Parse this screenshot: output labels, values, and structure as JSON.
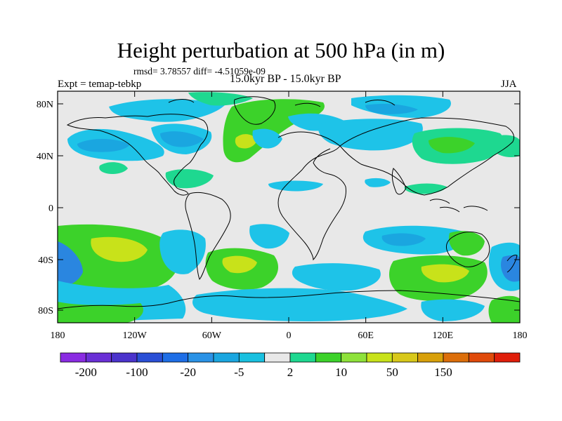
{
  "title": "Height perturbation at 500 hPa (in m)",
  "stats_line": "rmsd= 3.78557 diff= -4.51059e-09",
  "experiment": "Expt = temap-tebkp",
  "period": "15.0kyr BP - 15.0kyr BP",
  "season": "JJA",
  "lat_ticks": [
    "80N",
    "40N",
    "0",
    "40S",
    "80S"
  ],
  "lon_ticks": [
    "180",
    "120W",
    "60W",
    "0",
    "60E",
    "120E",
    "180"
  ],
  "colorbar": {
    "colors": [
      "#8a2be2",
      "#6a2fd6",
      "#4b33cc",
      "#2a4fd6",
      "#1e6ee6",
      "#2a92e6",
      "#1aa6e0",
      "#19c0e0",
      "#e8e8e8",
      "#1ed890",
      "#3cd22a",
      "#8ee23a",
      "#c8e21a",
      "#d8c81a",
      "#d8a00a",
      "#dc6e0a",
      "#e04a0a",
      "#e01e0a"
    ],
    "labels": [
      "-200",
      "-100",
      "-20",
      "-5",
      "2",
      "10",
      "50",
      "150"
    ]
  },
  "colors": {
    "background": "#e8e8e8",
    "light_blue": "#1ec3e8",
    "mid_blue": "#1aa6e0",
    "dark_blue": "#2a86e0",
    "green": "#3cd22a",
    "mint": "#1ed890",
    "yellow_green": "#c8e21a",
    "coast": "#000000"
  }
}
